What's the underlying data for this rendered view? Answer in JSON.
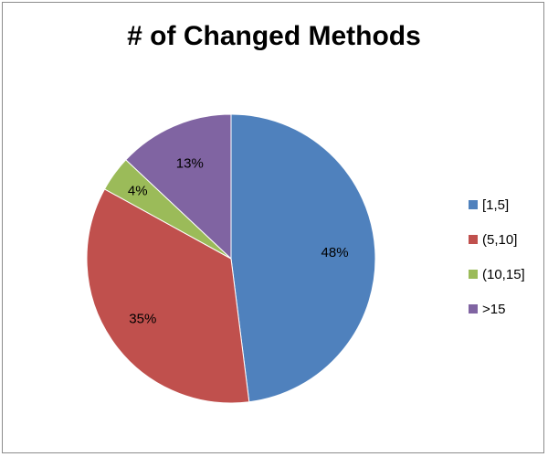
{
  "chart_data": {
    "type": "pie",
    "title": "# of Changed Methods",
    "categories": [
      "[1,5]",
      "(5,10]",
      "(10,15]",
      ">15"
    ],
    "values": [
      48,
      35,
      4,
      13
    ],
    "labels": [
      "48%",
      "35%",
      "4%",
      "13%"
    ],
    "colors": [
      "#4F81BD",
      "#C0504D",
      "#9BBB59",
      "#8064A2"
    ],
    "legend_position": "right"
  }
}
